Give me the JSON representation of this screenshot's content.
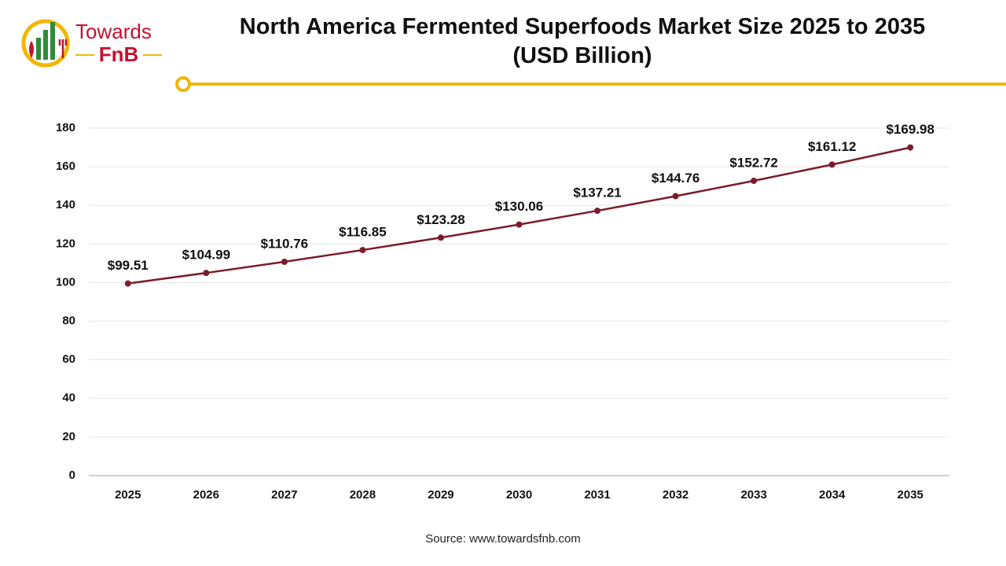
{
  "logo": {
    "line1": "Towards",
    "line2": "FnB"
  },
  "chart_data": {
    "type": "line",
    "title": "North America Fermented Superfoods Market Size 2025 to 2035 (USD Billion)",
    "categories": [
      "2025",
      "2026",
      "2027",
      "2028",
      "2029",
      "2030",
      "2031",
      "2032",
      "2033",
      "2034",
      "2035"
    ],
    "values": [
      99.51,
      104.99,
      110.76,
      116.85,
      123.28,
      130.06,
      137.21,
      144.76,
      152.72,
      161.12,
      169.98
    ],
    "value_labels": [
      "$99.51",
      "$104.99",
      "$110.76",
      "$116.85",
      "$123.28",
      "$130.06",
      "$137.21",
      "$144.76",
      "$152.72",
      "$161.12",
      "$169.98"
    ],
    "color": "#7b1c2a",
    "ylim": [
      0,
      180
    ],
    "yticks": [
      0,
      20,
      40,
      60,
      80,
      100,
      120,
      140,
      160,
      180
    ],
    "grid": true,
    "source": "Source: www.towardsfnb.com"
  }
}
